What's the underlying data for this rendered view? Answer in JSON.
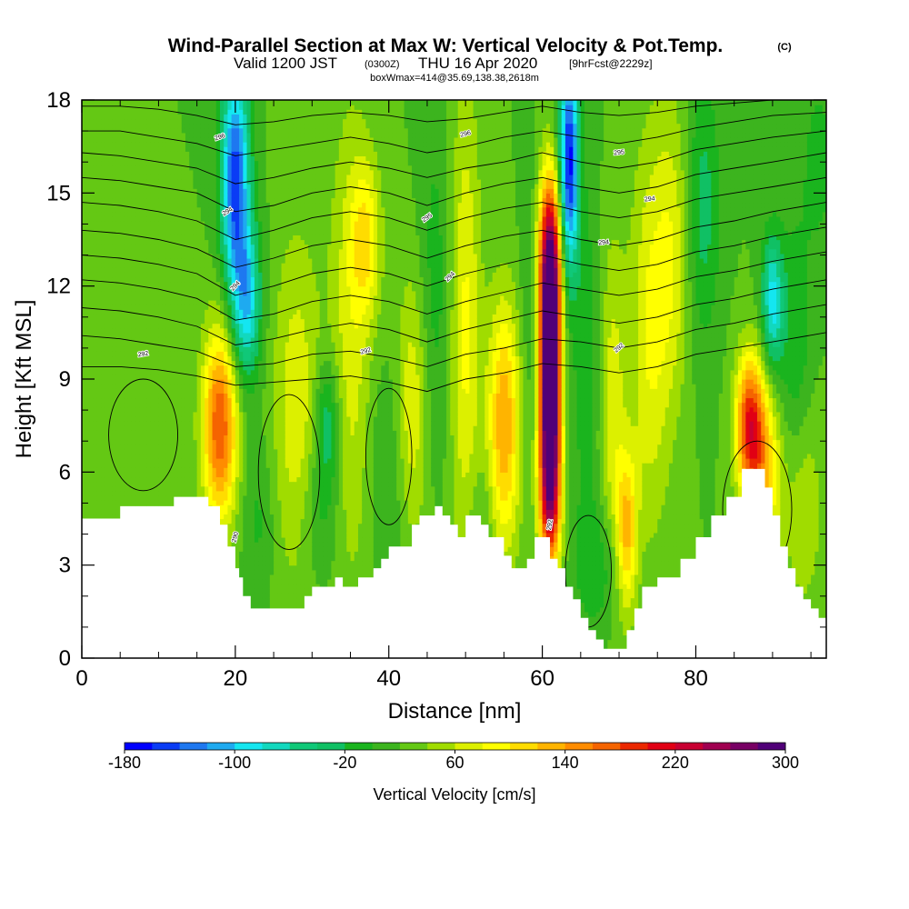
{
  "header": {
    "title": "Wind-Parallel Section at Max W: Vertical Velocity & Pot.Temp.",
    "copyright": "(C)",
    "valid_prefix": "Valid 1200 JST",
    "valid_z": "(0300Z)",
    "valid_date": "THU 16 Apr 2020",
    "forecast": "[9hrFcst@2229z]",
    "box_info": "boxWmax=414@35.69,138.38,2618m"
  },
  "colors": {
    "terrain": "#ffffff",
    "contour": "#000000",
    "background": "#ffffff"
  },
  "colorbar": {
    "label": "Vertical Velocity [cm/s]",
    "tick_labels": [
      "-180",
      "-100",
      "-20",
      "60",
      "140",
      "220",
      "300"
    ],
    "tick_values": [
      -180,
      -100,
      -20,
      60,
      140,
      220,
      300
    ],
    "range": [
      -180,
      300
    ],
    "step": 20,
    "colors": [
      "#0000ff",
      "#0a3cf5",
      "#1e78f0",
      "#1eaaf0",
      "#14e6f0",
      "#12d8be",
      "#10c878",
      "#10c064",
      "#1ab41e",
      "#3cb41e",
      "#64c814",
      "#a0dc00",
      "#dcf000",
      "#ffff00",
      "#ffdc00",
      "#ffb400",
      "#ff8c00",
      "#f56400",
      "#eb2800",
      "#e10014",
      "#c80032",
      "#a00050",
      "#780064",
      "#500078"
    ]
  },
  "chart_data": {
    "type": "heatmap",
    "title": "Wind-Parallel Section at Max W: Vertical Velocity & Pot.Temp.",
    "xlabel": "Distance [nm]",
    "ylabel": "Height [Kft MSL]",
    "xlim": [
      0,
      97
    ],
    "ylim": [
      0,
      18
    ],
    "x_ticks": [
      0,
      20,
      40,
      60,
      80
    ],
    "y_ticks": [
      0,
      3,
      6,
      9,
      12,
      15,
      18
    ],
    "grid": false,
    "colorbar_label": "Vertical Velocity [cm/s]",
    "colorbar_range": [
      -180,
      300
    ],
    "w_features": [
      {
        "x": 18,
        "y": 7.5,
        "w": 160,
        "sx": 1.6,
        "sy": 2.2
      },
      {
        "x": 20,
        "y": 15.5,
        "w": -170,
        "sx": 1.3,
        "sy": 2.6
      },
      {
        "x": 21.5,
        "y": 11.5,
        "w": -110,
        "sx": 1.3,
        "sy": 1.8
      },
      {
        "x": 23,
        "y": 4.5,
        "w": -25,
        "sx": 1.5,
        "sy": 1.8
      },
      {
        "x": 28,
        "y": 8.0,
        "w": 55,
        "sx": 2.2,
        "sy": 4.0
      },
      {
        "x": 31,
        "y": 4.5,
        "w": -30,
        "sx": 2.0,
        "sy": 1.5
      },
      {
        "x": 32,
        "y": 7.5,
        "w": -70,
        "sx": 1.2,
        "sy": 1.5
      },
      {
        "x": 35,
        "y": 10.0,
        "w": 50,
        "sx": 2.0,
        "sy": 5.5
      },
      {
        "x": 37,
        "y": 13.5,
        "w": 70,
        "sx": 1.4,
        "sy": 1.8
      },
      {
        "x": 40,
        "y": 6.0,
        "w": -25,
        "sx": 2.0,
        "sy": 2.5
      },
      {
        "x": 43,
        "y": 8.0,
        "w": 60,
        "sx": 1.5,
        "sy": 3.0
      },
      {
        "x": 46,
        "y": 12.0,
        "w": -30,
        "sx": 1.5,
        "sy": 4.0
      },
      {
        "x": 50,
        "y": 10.5,
        "w": 65,
        "sx": 1.4,
        "sy": 5.5
      },
      {
        "x": 52,
        "y": 4.5,
        "w": -20,
        "sx": 1.5,
        "sy": 1.5
      },
      {
        "x": 55,
        "y": 7.5,
        "w": 120,
        "sx": 1.5,
        "sy": 2.8
      },
      {
        "x": 58.5,
        "y": 12.0,
        "w": -25,
        "sx": 1.0,
        "sy": 3.0
      },
      {
        "x": 61,
        "y": 9.5,
        "w": 320,
        "sx": 0.9,
        "sy": 2.6
      },
      {
        "x": 61,
        "y": 13.0,
        "w": 180,
        "sx": 1.1,
        "sy": 2.0
      },
      {
        "x": 61,
        "y": 5.5,
        "w": 200,
        "sx": 1.0,
        "sy": 2.0
      },
      {
        "x": 63.5,
        "y": 16.0,
        "w": -190,
        "sx": 0.9,
        "sy": 2.5
      },
      {
        "x": 66,
        "y": 9.5,
        "w": -35,
        "sx": 1.5,
        "sy": 4.0
      },
      {
        "x": 68,
        "y": 3.0,
        "w": -40,
        "sx": 2.5,
        "sy": 1.5
      },
      {
        "x": 69,
        "y": 8.0,
        "w": 55,
        "sx": 1.3,
        "sy": 4.0
      },
      {
        "x": 71,
        "y": 4.0,
        "w": 110,
        "sx": 1.0,
        "sy": 1.8
      },
      {
        "x": 74,
        "y": 10.5,
        "w": 60,
        "sx": 1.8,
        "sy": 4.5
      },
      {
        "x": 77,
        "y": 13.0,
        "w": 50,
        "sx": 1.6,
        "sy": 3.5
      },
      {
        "x": 81,
        "y": 14.5,
        "w": -50,
        "sx": 1.5,
        "sy": 3.0
      },
      {
        "x": 87,
        "y": 7.5,
        "w": 170,
        "sx": 1.3,
        "sy": 1.6
      },
      {
        "x": 89,
        "y": 6.0,
        "w": 90,
        "sx": 1.5,
        "sy": 2.0
      },
      {
        "x": 90,
        "y": 11.5,
        "w": -110,
        "sx": 1.0,
        "sy": 1.5
      },
      {
        "x": 93,
        "y": 10.0,
        "w": -40,
        "sx": 1.5,
        "sy": 3.0
      },
      {
        "x": 94,
        "y": 5.0,
        "w": 40,
        "sx": 1.8,
        "sy": 2.5
      },
      {
        "x": 96,
        "y": 16.0,
        "w": -30,
        "sx": 1.5,
        "sy": 2.0
      }
    ],
    "w_background": 20,
    "terrain_kft": {
      "x": [
        0,
        3.5,
        5,
        10,
        12,
        14,
        16.5,
        17,
        18,
        19,
        20,
        20.5,
        21,
        22,
        23,
        25,
        28,
        29,
        30,
        33,
        34,
        36,
        38,
        39,
        40,
        42,
        43,
        44,
        46,
        47,
        48,
        49,
        50,
        51,
        52,
        53,
        55,
        56,
        58,
        59,
        60,
        61,
        62,
        63,
        64,
        65,
        66,
        67,
        68,
        69,
        70,
        71,
        72,
        73,
        75,
        76,
        78,
        80,
        82,
        84,
        86,
        88,
        89,
        90,
        91,
        92,
        93,
        94,
        95,
        96,
        97
      ],
      "y": [
        4.5,
        4.5,
        4.9,
        4.9,
        5.2,
        5.2,
        4.9,
        4.9,
        4.3,
        3.6,
        2.9,
        2.6,
        2.0,
        1.6,
        1.6,
        1.6,
        1.6,
        2.0,
        2.3,
        2.6,
        2.3,
        2.6,
        2.9,
        3.2,
        3.6,
        3.6,
        4.3,
        4.6,
        4.9,
        4.6,
        4.3,
        3.9,
        4.6,
        4.6,
        4.3,
        3.9,
        3.3,
        2.9,
        3.2,
        3.9,
        3.9,
        3.2,
        2.9,
        2.3,
        1.9,
        1.3,
        0.9,
        0.6,
        0.3,
        0.3,
        0.3,
        0.9,
        1.6,
        2.3,
        2.6,
        2.6,
        3.2,
        3.9,
        4.6,
        5.2,
        6.1,
        6.1,
        5.5,
        4.6,
        3.6,
        2.9,
        2.3,
        1.9,
        1.6,
        1.3,
        1.3
      ]
    },
    "theta_contours": [
      {
        "level": 296,
        "label": "296",
        "x": [
          0,
          5,
          10,
          15,
          20,
          25,
          30,
          35,
          40,
          45,
          50,
          55,
          60,
          65,
          70,
          75,
          80,
          85,
          90,
          97
        ],
        "y": [
          17.8,
          17.8,
          17.7,
          17.5,
          17.2,
          17.3,
          17.5,
          17.6,
          17.5,
          17.3,
          17.4,
          17.6,
          17.8,
          17.6,
          17.5,
          17.6,
          17.8,
          17.9,
          18.0,
          18.0
        ]
      },
      {
        "level": 295.5,
        "label": "",
        "x": [
          0,
          5,
          10,
          15,
          20,
          25,
          30,
          35,
          40,
          45,
          50,
          55,
          60,
          65,
          70,
          75,
          80,
          85,
          90,
          97
        ],
        "y": [
          17.0,
          17.0,
          16.8,
          16.6,
          16.2,
          16.4,
          16.6,
          16.8,
          16.6,
          16.3,
          16.5,
          16.8,
          17.0,
          16.8,
          16.6,
          16.8,
          17.1,
          17.3,
          17.5,
          17.6
        ]
      },
      {
        "level": 295,
        "label": "295",
        "x": [
          0,
          5,
          10,
          15,
          20,
          25,
          30,
          35,
          40,
          45,
          50,
          55,
          60,
          65,
          70,
          75,
          80,
          85,
          90,
          97
        ],
        "y": [
          16.3,
          16.2,
          16.0,
          15.8,
          15.3,
          15.5,
          15.8,
          16.0,
          15.8,
          15.5,
          15.8,
          16.0,
          16.3,
          16.0,
          15.8,
          16.0,
          16.4,
          16.6,
          16.8,
          17.0
        ]
      },
      {
        "level": 294.5,
        "label": "",
        "x": [
          0,
          5,
          10,
          15,
          20,
          25,
          30,
          35,
          40,
          45,
          50,
          55,
          60,
          65,
          70,
          75,
          80,
          85,
          90,
          97
        ],
        "y": [
          15.5,
          15.4,
          15.2,
          15.0,
          14.4,
          14.6,
          15.0,
          15.2,
          15.0,
          14.6,
          15.0,
          15.3,
          15.5,
          15.2,
          15.0,
          15.2,
          15.6,
          15.8,
          16.0,
          16.3
        ]
      },
      {
        "level": 294,
        "label": "294",
        "x": [
          0,
          5,
          10,
          15,
          20,
          25,
          30,
          35,
          40,
          45,
          50,
          55,
          60,
          65,
          70,
          75,
          80,
          85,
          90,
          97
        ],
        "y": [
          14.7,
          14.6,
          14.4,
          14.1,
          13.5,
          13.8,
          14.2,
          14.4,
          14.2,
          13.8,
          14.2,
          14.5,
          14.7,
          14.4,
          14.2,
          14.4,
          14.8,
          15.0,
          15.2,
          15.5
        ]
      },
      {
        "level": 293.5,
        "label": "",
        "x": [
          0,
          5,
          10,
          15,
          20,
          25,
          30,
          35,
          40,
          45,
          50,
          55,
          60,
          65,
          70,
          75,
          80,
          85,
          90,
          97
        ],
        "y": [
          13.8,
          13.7,
          13.5,
          13.2,
          12.6,
          12.9,
          13.3,
          13.5,
          13.3,
          12.9,
          13.3,
          13.6,
          13.8,
          13.5,
          13.3,
          13.5,
          13.9,
          14.1,
          14.4,
          14.7
        ]
      },
      {
        "level": 293,
        "label": "",
        "x": [
          0,
          5,
          10,
          15,
          20,
          25,
          30,
          35,
          40,
          45,
          50,
          55,
          60,
          65,
          70,
          75,
          80,
          85,
          90,
          97
        ],
        "y": [
          13.0,
          12.9,
          12.7,
          12.4,
          11.7,
          12.0,
          12.4,
          12.6,
          12.4,
          12.0,
          12.4,
          12.7,
          13.0,
          12.7,
          12.5,
          12.7,
          13.1,
          13.3,
          13.6,
          13.9
        ]
      },
      {
        "level": 292.5,
        "label": "",
        "x": [
          0,
          5,
          10,
          15,
          20,
          25,
          30,
          35,
          40,
          45,
          50,
          55,
          60,
          65,
          70,
          75,
          80,
          85,
          90,
          97
        ],
        "y": [
          12.2,
          12.1,
          11.9,
          11.6,
          10.9,
          11.1,
          11.5,
          11.7,
          11.5,
          11.1,
          11.5,
          11.8,
          12.1,
          11.9,
          11.7,
          11.9,
          12.3,
          12.5,
          12.8,
          13.1
        ]
      },
      {
        "level": 292,
        "label": "292",
        "x": [
          0,
          5,
          10,
          15,
          20,
          25,
          30,
          35,
          40,
          45,
          50,
          55,
          60,
          65,
          70,
          75,
          80,
          85,
          90,
          97
        ],
        "y": [
          11.3,
          11.2,
          11.0,
          10.7,
          10.1,
          10.3,
          10.6,
          10.8,
          10.6,
          10.2,
          10.6,
          10.9,
          11.2,
          11.0,
          10.8,
          11.0,
          11.4,
          11.6,
          11.9,
          12.2
        ]
      },
      {
        "level": 291.5,
        "label": "",
        "x": [
          0,
          5,
          10,
          15,
          20,
          25,
          30,
          35,
          40,
          45,
          50,
          55,
          60,
          65,
          70,
          75,
          80,
          85,
          90,
          97
        ],
        "y": [
          10.4,
          10.3,
          10.1,
          9.9,
          9.4,
          9.5,
          9.8,
          9.9,
          9.7,
          9.4,
          9.8,
          10.0,
          10.3,
          10.2,
          10.0,
          10.2,
          10.6,
          10.8,
          11.1,
          11.4
        ]
      },
      {
        "level": 291,
        "label": "",
        "x": [
          0,
          5,
          10,
          15,
          20,
          25,
          30,
          35,
          40,
          45,
          50,
          55,
          60,
          65,
          70,
          75,
          80,
          85,
          90,
          97
        ],
        "y": [
          9.4,
          9.4,
          9.3,
          9.1,
          8.8,
          8.9,
          9.0,
          9.1,
          8.9,
          8.6,
          9.0,
          9.2,
          9.5,
          9.4,
          9.2,
          9.4,
          9.8,
          10.0,
          10.2,
          10.5
        ]
      }
    ],
    "contour_labels": [
      {
        "text": "296",
        "x": 18,
        "y": 16.8,
        "rot": -20
      },
      {
        "text": "296",
        "x": 50,
        "y": 16.9,
        "rot": -15
      },
      {
        "text": "295",
        "x": 70,
        "y": 16.3,
        "rot": -5
      },
      {
        "text": "294",
        "x": 19,
        "y": 14.4,
        "rot": -30
      },
      {
        "text": "295",
        "x": 45,
        "y": 14.2,
        "rot": -35
      },
      {
        "text": "294",
        "x": 74,
        "y": 14.8,
        "rot": -5
      },
      {
        "text": "294",
        "x": 68,
        "y": 13.4,
        "rot": -5
      },
      {
        "text": "294",
        "x": 20,
        "y": 12.0,
        "rot": -45
      },
      {
        "text": "294",
        "x": 48,
        "y": 12.3,
        "rot": -45
      },
      {
        "text": "292",
        "x": 8,
        "y": 9.8,
        "rot": -10
      },
      {
        "text": "292",
        "x": 37,
        "y": 9.9,
        "rot": -15
      },
      {
        "text": "292",
        "x": 70,
        "y": 10.0,
        "rot": -40
      },
      {
        "text": "290",
        "x": 20,
        "y": 3.9,
        "rot": -75
      },
      {
        "text": "292",
        "x": 61,
        "y": 4.3,
        "rot": -80
      }
    ]
  }
}
